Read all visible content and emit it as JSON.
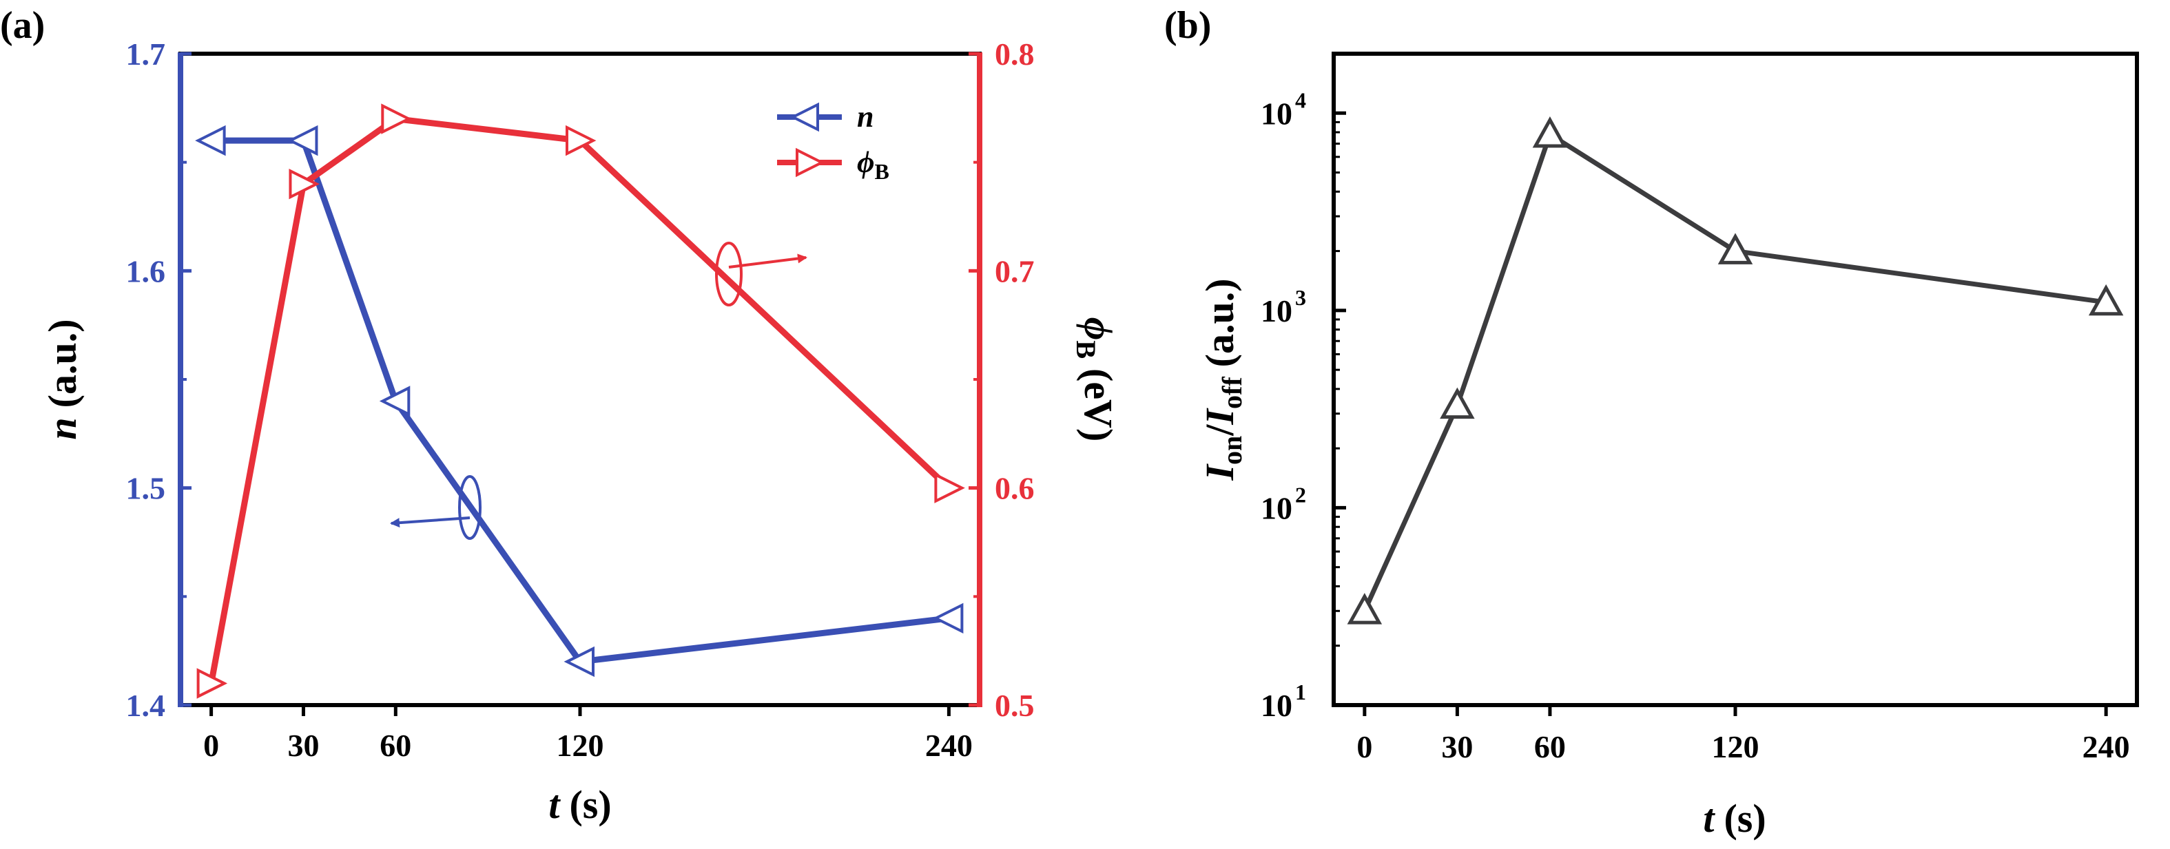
{
  "colors": {
    "blue": "#3a4fb4",
    "red": "#e8303a",
    "dark": "#3c3c3e",
    "frame": "#000000"
  },
  "chart_data": [
    {
      "panel": "(a)",
      "type": "line",
      "x": [
        0,
        30,
        60,
        120,
        240
      ],
      "xticks": [
        "0",
        "30",
        "60",
        "120",
        "240"
      ],
      "xlabel_var": "t",
      "xlabel_unit": "(s)",
      "xlim": [
        -10,
        250
      ],
      "yleft": {
        "label_var": "n",
        "label_unit": "(a.u.)",
        "ylim": [
          1.4,
          1.7
        ],
        "ticks": [
          "1.4",
          "1.5",
          "1.6",
          "1.7"
        ]
      },
      "yright": {
        "label_var": "ϕ",
        "label_sub": "B",
        "label_unit": "(eV)",
        "ylim": [
          0.5,
          0.8
        ],
        "ticks": [
          "0.5",
          "0.6",
          "0.7",
          "0.8"
        ]
      },
      "legend_position": "top-right",
      "series": [
        {
          "name": "n",
          "axis": "left",
          "marker": "triangle-left",
          "color": "#3a4fb4",
          "values": [
            1.66,
            1.66,
            1.54,
            1.42,
            1.44
          ]
        },
        {
          "name": "ϕ",
          "name_sub": "B",
          "axis": "right",
          "marker": "triangle-right",
          "color": "#e8303a",
          "values": [
            0.51,
            0.74,
            0.77,
            0.76,
            0.6
          ]
        }
      ]
    },
    {
      "panel": "(b)",
      "type": "line",
      "x": [
        0,
        30,
        60,
        120,
        240
      ],
      "xticks": [
        "0",
        "30",
        "60",
        "120",
        "240"
      ],
      "xlabel_var": "t",
      "xlabel_unit": "(s)",
      "xlim": [
        -10,
        250
      ],
      "yscale": "log",
      "ylim": [
        10,
        20000
      ],
      "yticks": [
        "10",
        "10",
        "10",
        "10"
      ],
      "ytick_exponents": [
        "1",
        "2",
        "3",
        "4"
      ],
      "ylabel_parts": [
        "I",
        "on",
        "/",
        "I",
        "off",
        "(a.u.)"
      ],
      "series": [
        {
          "marker": "triangle-up",
          "color": "#3c3c3e",
          "values": [
            30,
            330,
            7800,
            2000,
            1100
          ]
        }
      ]
    }
  ]
}
